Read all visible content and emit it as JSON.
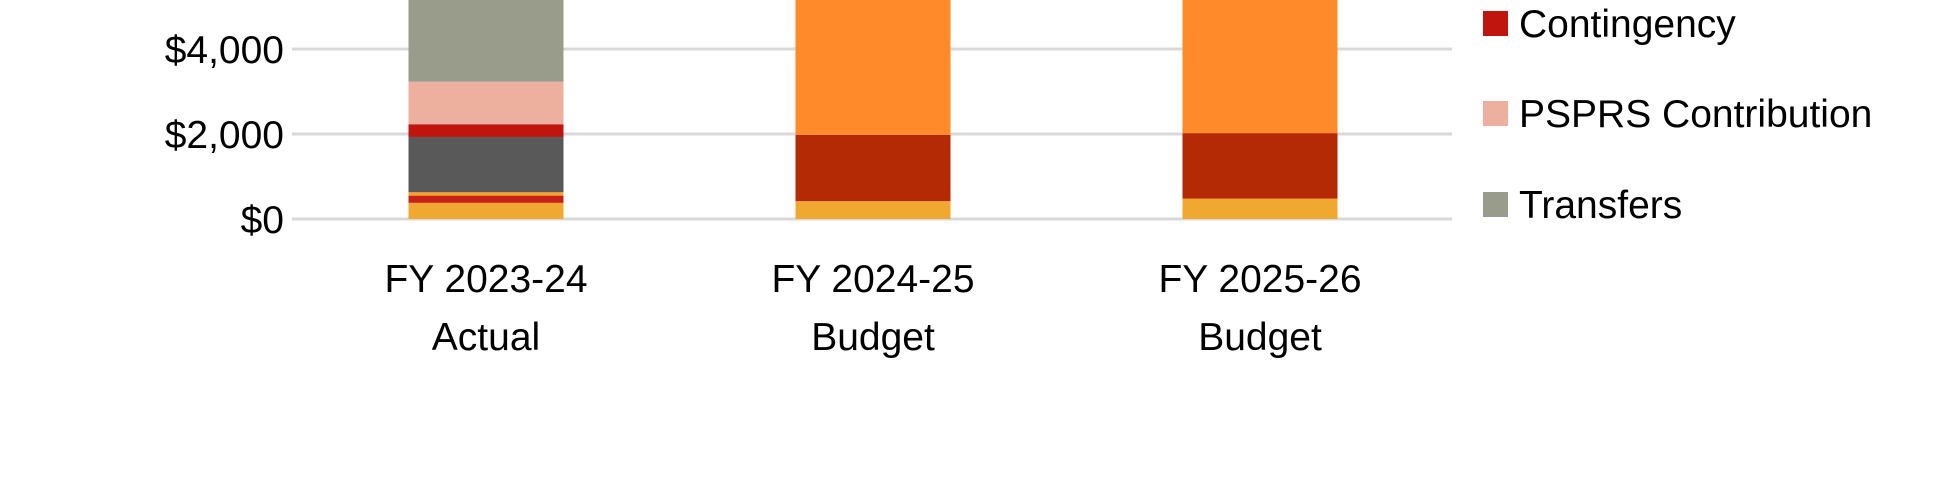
{
  "chart_data": {
    "type": "bar",
    "stacked": true,
    "title": "",
    "xlabel": "",
    "ylabel": "",
    "categories": [
      [
        "FY 2023-24",
        "Actual"
      ],
      [
        "FY 2024-25",
        "Budget"
      ],
      [
        "FY 2025-26",
        "Budget"
      ]
    ],
    "y_ticks": [
      {
        "value": 0,
        "label": "$0"
      },
      {
        "value": 2000,
        "label": "$2,000"
      },
      {
        "value": 4000,
        "label": "$4,000"
      }
    ],
    "ylim": [
      0,
      5100
    ],
    "grid": true,
    "legend_position": "right",
    "series": [
      {
        "key": "s1",
        "color": "#f0a830",
        "values": [
          380,
          420,
          480
        ]
      },
      {
        "key": "s2",
        "color": "#c8211a",
        "values": [
          170,
          0,
          0
        ]
      },
      {
        "key": "s3",
        "color": "#f6a12a",
        "values": [
          80,
          0,
          0
        ]
      },
      {
        "key": "s4",
        "color": "#595959",
        "values": [
          1300,
          0,
          0
        ]
      },
      {
        "key": "s5",
        "color": "#b32a05",
        "values": [
          0,
          1560,
          1540
        ]
      },
      {
        "key": "Contingency",
        "name": "Contingency",
        "color": "#c0140e",
        "values": [
          300,
          0,
          0
        ]
      },
      {
        "key": "PSPRS Contribution",
        "name": "PSPRS Contribution",
        "color": "#edb09f",
        "values": [
          1000,
          0,
          0
        ]
      },
      {
        "key": "Transfers",
        "name": "Transfers",
        "color": "#999c8a",
        "values": [
          2000,
          0,
          0
        ]
      },
      {
        "key": "s9",
        "color": "#ff8a2a",
        "values": [
          0,
          3300,
          3200
        ]
      }
    ],
    "legend": [
      {
        "label": "Contingency",
        "color": "#c0140e"
      },
      {
        "label": "PSPRS Contribution",
        "color": "#edb09f"
      },
      {
        "label": "Transfers",
        "color": "#999c8a"
      }
    ]
  }
}
